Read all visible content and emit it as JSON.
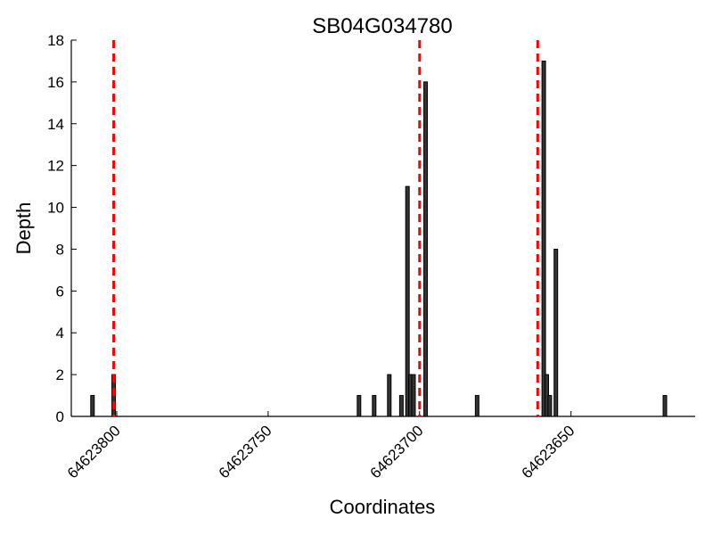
{
  "chart_data": {
    "type": "bar",
    "title": "SB04G034780",
    "xlabel": "Coordinates",
    "ylabel": "Depth",
    "xlim": [
      64623815,
      64623609
    ],
    "ylim": [
      0,
      18
    ],
    "x_reversed": true,
    "xticks": [
      64623800,
      64623750,
      64623700,
      64623650
    ],
    "yticks": [
      0,
      2,
      4,
      6,
      8,
      10,
      12,
      14,
      16,
      18
    ],
    "grid": false,
    "legend": "none",
    "bar_color": "#333333",
    "marker_color": "#ff0000",
    "series": [
      {
        "x": [
          64623808,
          64623801,
          64623720,
          64623715,
          64623710,
          64623706,
          64623704,
          64623703,
          64623702,
          64623698,
          64623681,
          64623659,
          64623658,
          64623657,
          64623655,
          64623619
        ],
        "values": [
          1,
          2,
          1,
          1,
          2,
          1,
          11,
          2,
          2,
          16,
          1,
          17,
          2,
          1,
          8,
          1
        ]
      }
    ],
    "markers": [
      64623801,
      64623700,
      64623661
    ]
  }
}
